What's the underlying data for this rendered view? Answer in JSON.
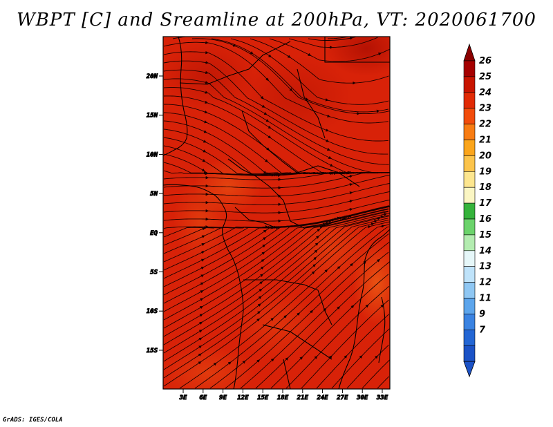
{
  "title": "WBPT [C] and Sreamline at 200hPa, VT: 2020061700",
  "credit": "GrADS: IGES/COLA",
  "map": {
    "lat_labels": [
      "20N",
      "15N",
      "10N",
      "5N",
      "EQ",
      "5S",
      "10S",
      "15S"
    ],
    "lon_labels": [
      "3E",
      "6E",
      "9E",
      "12E",
      "15E",
      "18E",
      "21E",
      "24E",
      "27E",
      "30E",
      "33E"
    ],
    "background_color": "#d82208"
  },
  "colorbar": {
    "labels": [
      "26",
      "25",
      "24",
      "23",
      "22",
      "21",
      "20",
      "19",
      "18",
      "17",
      "16",
      "15",
      "14",
      "13",
      "12",
      "11",
      "9",
      "7"
    ],
    "colors": [
      "#a50000",
      "#c81400",
      "#e12a05",
      "#f24c0b",
      "#f87c12",
      "#fba51b",
      "#fcc44b",
      "#fde68f",
      "#fbf6c3",
      "#35b33b",
      "#6bd36b",
      "#b3ecb0",
      "#e6f7f9",
      "#bfe3fa",
      "#8fc7f3",
      "#5ca5ec",
      "#3a83e2",
      "#2366d4",
      "#1b52c6"
    ]
  }
}
